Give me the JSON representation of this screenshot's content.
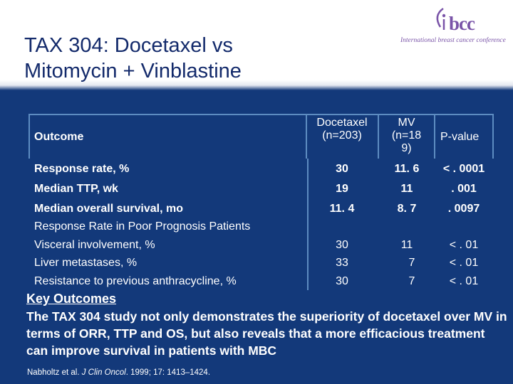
{
  "slide": {
    "title_line1": "TAX 304: Docetaxel vs",
    "title_line2": "Mitomycin + Vinblastine"
  },
  "logo": {
    "wordmark": "bcc",
    "tagline": "International breast cancer conference"
  },
  "table": {
    "headers": {
      "outcome": "Outcome",
      "docetaxel_line1": "Docetaxel",
      "docetaxel_line2": "(n=203)",
      "mv_line1": "MV",
      "mv_line2": "(n=18",
      "mv_line3": "9)",
      "pvalue": "P-value"
    },
    "rows": [
      {
        "label": "Response rate, %",
        "docetaxel": "30",
        "mv": "11. 6",
        "pvalue": "< . 0001"
      },
      {
        "label": "Median TTP, wk",
        "docetaxel": "19",
        "mv": "11",
        "pvalue": ". 001"
      },
      {
        "label": "Median overall survival, mo",
        "docetaxel": "11. 4",
        "mv": "8. 7",
        "pvalue": ". 0097"
      },
      {
        "label": "Response Rate in Poor Prognosis Patients",
        "docetaxel": "",
        "mv": "",
        "pvalue": ""
      },
      {
        "label": "Visceral involvement, %",
        "docetaxel": "30",
        "mv": "11",
        "pvalue": "< . 01"
      },
      {
        "label": "Liver metastases, %",
        "docetaxel": "33",
        "mv": "7",
        "pvalue": "< . 01"
      },
      {
        "label": "Resistance to previous anthracycline, %",
        "docetaxel": "30",
        "mv": "7",
        "pvalue": "< . 01"
      }
    ]
  },
  "key_outcomes": {
    "heading": "Key Outcomes",
    "text": "The TAX 304 study not only demonstrates the superiority of docetaxel over MV in terms of ORR, TTP and OS, but also reveals that a more efficacious treatment can improve survival in patients with MBC"
  },
  "reference": {
    "authors": "Nabholtz et al. ",
    "journal": "J Clin Oncol",
    "details": ". 1999; 17: 1413–1424."
  },
  "colors": {
    "background": "#13397a",
    "gridlines": "#5d8cc1",
    "title_text": "#132a6b",
    "logo": "#7a54a8"
  }
}
